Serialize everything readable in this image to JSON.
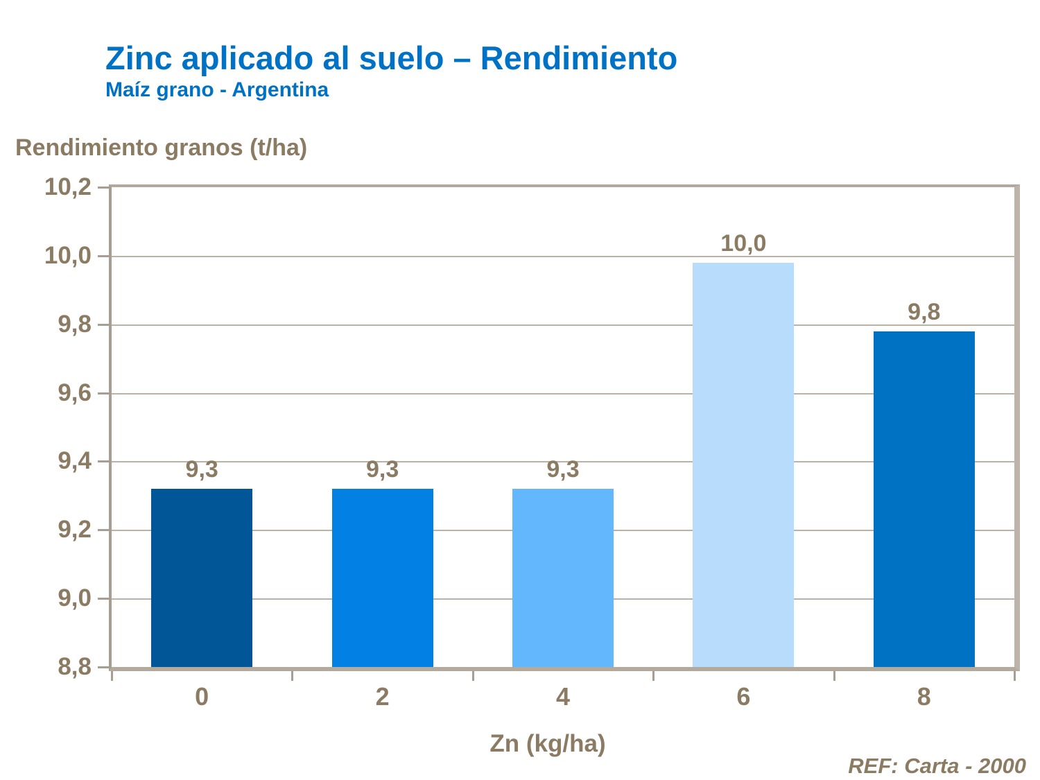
{
  "header": {
    "title": "Zinc aplicado al suelo – Rendimiento",
    "subtitle": "Maíz grano - Argentina",
    "title_color": "#0072C6"
  },
  "footer": {
    "ref": "REF: Carta - 2000"
  },
  "chart_data": {
    "type": "bar",
    "title": "Zinc aplicado al suelo – Rendimiento",
    "subtitle": "Maíz grano - Argentina",
    "ylabel": "Rendimiento granos (t/ha)",
    "xlabel": "Zn (kg/ha)",
    "categories": [
      "0",
      "2",
      "4",
      "6",
      "8"
    ],
    "values": [
      9.32,
      9.32,
      9.32,
      9.98,
      9.78
    ],
    "bar_labels": [
      "9,3",
      "9,3",
      "9,3",
      "10,0",
      "9,8"
    ],
    "bar_colors": [
      "#015697",
      "#0280E4",
      "#62B7FD",
      "#B8DCFC",
      "#0072C4"
    ],
    "ylim": [
      8.8,
      10.2
    ],
    "ytick_values": [
      8.8,
      9.0,
      9.2,
      9.4,
      9.6,
      9.8,
      10.0,
      10.2
    ],
    "ytick_labels": [
      "8,8",
      "9,0",
      "9,2",
      "9,4",
      "9,6",
      "9,8",
      "10,0",
      "10,2"
    ],
    "grid": "horizontal",
    "legend": "none",
    "text_color": "#8C7B63",
    "axis_color": "#A89D92",
    "gridline_color": "#BCB1A5"
  }
}
